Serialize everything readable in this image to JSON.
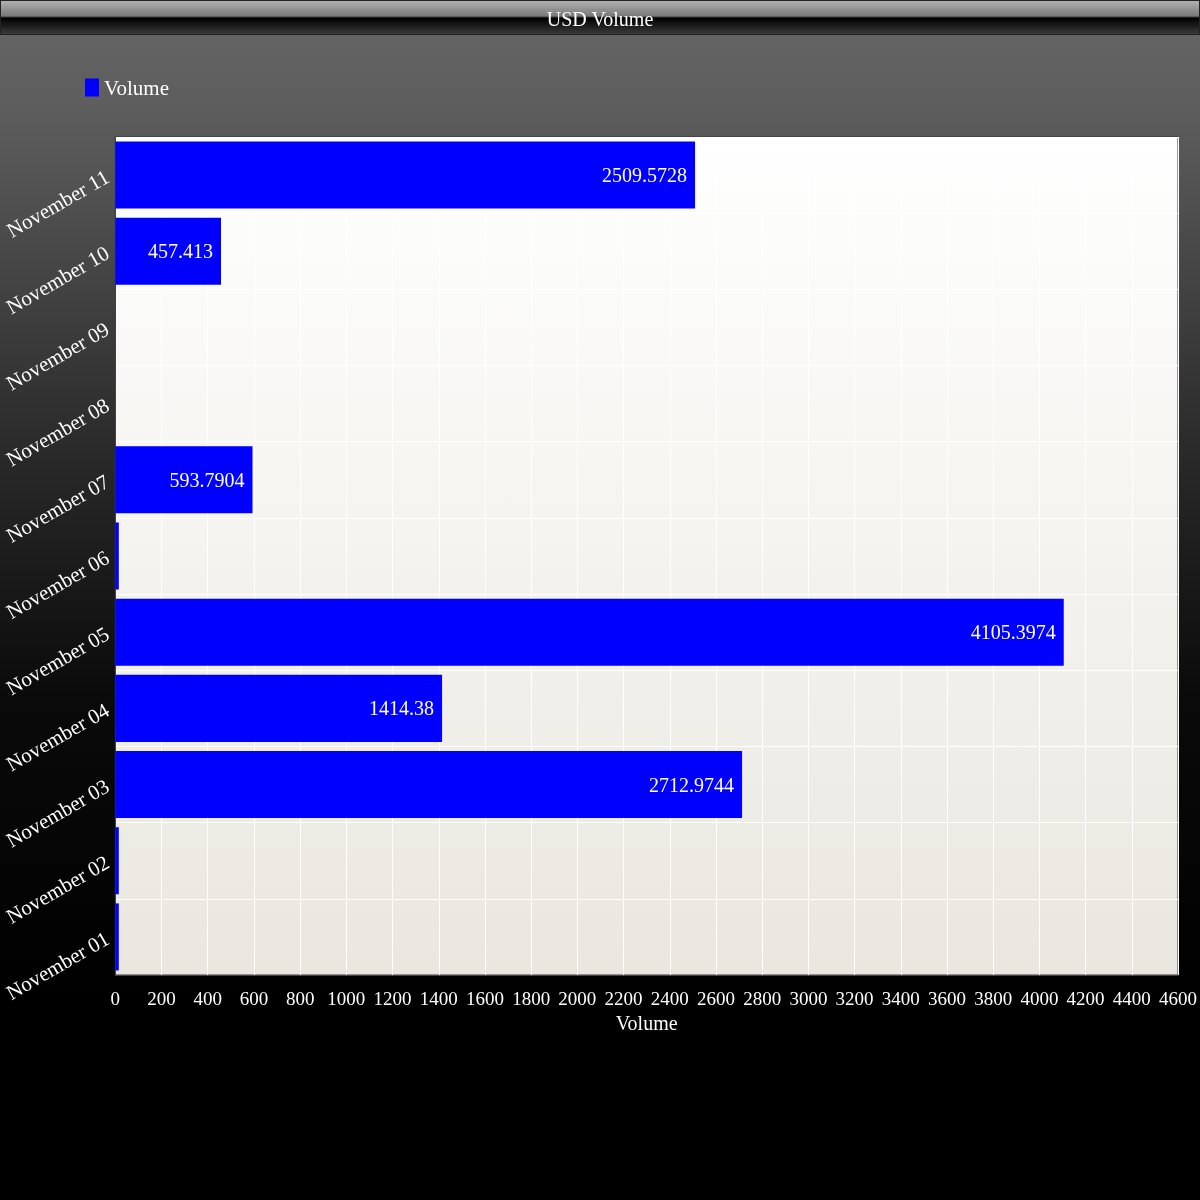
{
  "chart_data": {
    "type": "bar",
    "orientation": "horizontal",
    "title": "USD Volume",
    "xlabel": "Volume",
    "categories": [
      "November 11",
      "November 10",
      "November 09",
      "November 08",
      "November 07",
      "November 06",
      "November 05",
      "November 04",
      "November 03",
      "November 02",
      "November 01"
    ],
    "series": [
      {
        "name": "Volume",
        "color": "#0000ff",
        "values": [
          2509.5728,
          457.413,
          null,
          null,
          593.7904,
          15,
          4105.3974,
          1414.38,
          2712.9744,
          15,
          15
        ],
        "value_labels": [
          "2509.5728",
          "457.413",
          null,
          null,
          "593.7904",
          null,
          "4105.3974",
          "1414.38",
          "2712.9744",
          null,
          null
        ]
      }
    ],
    "xlim": [
      0,
      4600
    ],
    "xticks": [
      0,
      200,
      400,
      600,
      800,
      1000,
      1200,
      1400,
      1600,
      1800,
      2000,
      2200,
      2400,
      2600,
      2800,
      3000,
      3200,
      3400,
      3600,
      3800,
      4000,
      4200,
      4400,
      4600
    ],
    "grid": true,
    "legend": "top left"
  }
}
